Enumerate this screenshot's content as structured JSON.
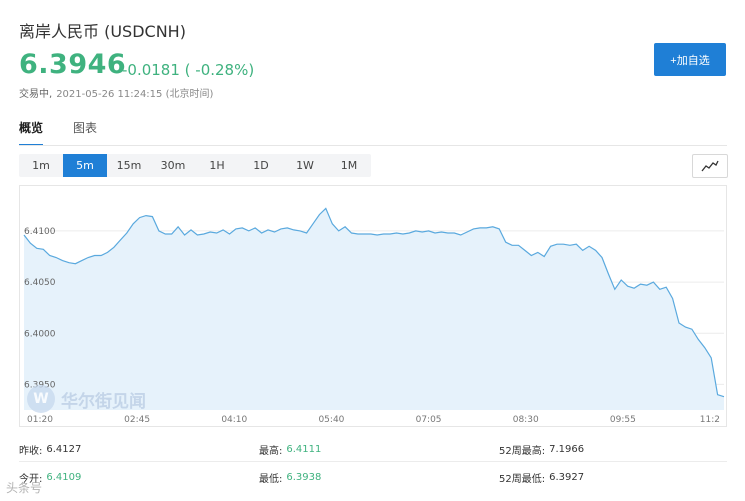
{
  "header": {
    "title": "离岸人民币 (USDCNH)",
    "price": "6.3946",
    "change": "-0.0181 ( -0.28%)",
    "status": "交易中,",
    "timestamp": "2021-05-26 11:24:15 (北京时间)",
    "add_button": "+加自选"
  },
  "tabs": [
    {
      "label": "概览",
      "active": true
    },
    {
      "label": "图表",
      "active": false
    }
  ],
  "periods": [
    {
      "label": "1m",
      "active": false
    },
    {
      "label": "5m",
      "active": true
    },
    {
      "label": "15m",
      "active": false
    },
    {
      "label": "30m",
      "active": false
    },
    {
      "label": "1H",
      "active": false
    },
    {
      "label": "1D",
      "active": false
    },
    {
      "label": "1W",
      "active": false
    },
    {
      "label": "1M",
      "active": false
    }
  ],
  "chart_toggle_icon": "line-chart-icon",
  "chart_data": {
    "type": "area",
    "y_ticks": [
      "6.4100",
      "6.4050",
      "6.4000",
      "6.3950"
    ],
    "ylim": [
      6.3925,
      6.414
    ],
    "x_ticks": [
      "01:20",
      "02:45",
      "04:10",
      "05:40",
      "07:05",
      "08:30",
      "09:55",
      "11:2"
    ],
    "series": [
      {
        "values": [
          6.4096,
          6.4088,
          6.4083,
          6.4082,
          6.4076,
          6.4074,
          6.4071,
          6.4069,
          6.4068,
          6.4071,
          6.4074,
          6.4076,
          6.4076,
          6.4079,
          6.4084,
          6.4091,
          6.4098,
          6.4107,
          6.4113,
          6.4115,
          6.4114,
          6.41,
          6.4097,
          6.4097,
          6.4104,
          6.4096,
          6.4101,
          6.4096,
          6.4097,
          6.4099,
          6.4098,
          6.4101,
          6.4097,
          6.4102,
          6.4103,
          6.41,
          6.4103,
          6.4098,
          6.4101,
          6.4099,
          6.4102,
          6.4103,
          6.4101,
          6.41,
          6.4098,
          6.4107,
          6.4116,
          6.4122,
          6.4107,
          6.41,
          6.4104,
          6.4098,
          6.4097,
          6.4097,
          6.4097,
          6.4096,
          6.4097,
          6.4097,
          6.4098,
          6.4097,
          6.4098,
          6.41,
          6.4099,
          6.41,
          6.4098,
          6.4099,
          6.4098,
          6.4098,
          6.4096,
          6.4099,
          6.4102,
          6.4103,
          6.4103,
          6.4104,
          6.4102,
          6.4089,
          6.4086,
          6.4086,
          6.4081,
          6.4076,
          6.4079,
          6.4075,
          6.4085,
          6.4087,
          6.4087,
          6.4086,
          6.4087,
          6.4081,
          6.4085,
          6.4081,
          6.4074,
          6.4058,
          6.4043,
          6.4052,
          6.4046,
          6.4044,
          6.4048,
          6.4047,
          6.405,
          6.4043,
          6.4045,
          6.4034,
          6.401,
          6.4006,
          6.4004,
          6.3994,
          6.3986,
          6.3976,
          6.394,
          6.3938
        ]
      }
    ],
    "line_color": "#5aa9de",
    "fill_color": "#e6f2fb",
    "grid": true
  },
  "watermark": {
    "logo": "W",
    "text": "华尔街见闻"
  },
  "stats": [
    [
      {
        "label": "昨收:",
        "value": "6.4127",
        "value_color": ""
      },
      {
        "label": "最高:",
        "value": "6.4111",
        "value_color": "green"
      },
      {
        "label": "52周最高:",
        "value": "7.1966",
        "value_color": ""
      }
    ],
    [
      {
        "label": "今开:",
        "value": "6.4109",
        "value_color": "green"
      },
      {
        "label": "最低:",
        "value": "6.3938",
        "value_color": "green"
      },
      {
        "label": "52周最低:",
        "value": "6.3927",
        "value_color": ""
      }
    ]
  ],
  "corner_watermark": "头条号"
}
